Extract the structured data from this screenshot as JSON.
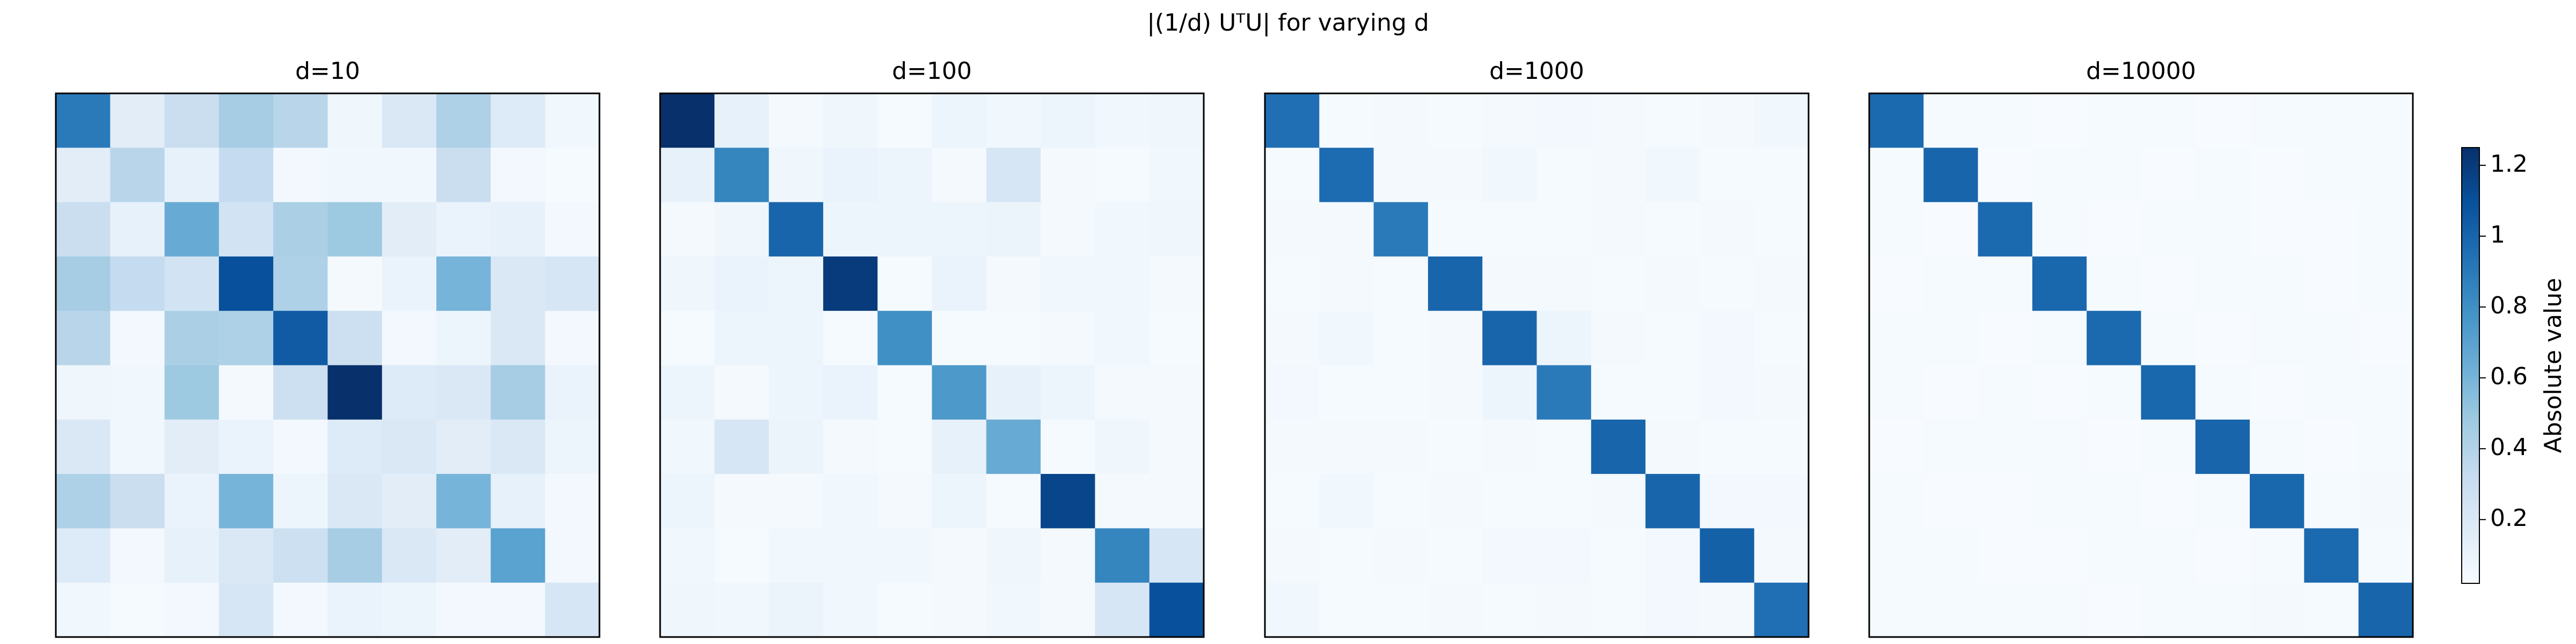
{
  "title": "|(1/d) UᵀU| for varying d",
  "colorbar": {
    "label": "Absolute value",
    "cmap": "Blues",
    "clim": [
      0.02,
      1.25
    ],
    "ticks": [
      0.2,
      0.4,
      0.6,
      0.8,
      1.0,
      1.2
    ]
  },
  "chart_data": [
    {
      "type": "heatmap",
      "title": "d=10",
      "values": [
        [
          0.9,
          0.15,
          0.3,
          0.45,
          0.38,
          0.07,
          0.2,
          0.42,
          0.18,
          0.06
        ],
        [
          0.15,
          0.38,
          0.12,
          0.33,
          0.05,
          0.06,
          0.06,
          0.3,
          0.05,
          0.03
        ],
        [
          0.3,
          0.12,
          0.65,
          0.25,
          0.43,
          0.48,
          0.15,
          0.1,
          0.12,
          0.05
        ],
        [
          0.45,
          0.33,
          0.25,
          1.1,
          0.42,
          0.04,
          0.1,
          0.6,
          0.2,
          0.22
        ],
        [
          0.38,
          0.05,
          0.43,
          0.42,
          1.05,
          0.28,
          0.05,
          0.08,
          0.2,
          0.05
        ],
        [
          0.07,
          0.06,
          0.48,
          0.04,
          0.28,
          1.25,
          0.18,
          0.2,
          0.45,
          0.1
        ],
        [
          0.2,
          0.06,
          0.15,
          0.1,
          0.05,
          0.18,
          0.2,
          0.15,
          0.2,
          0.08
        ],
        [
          0.42,
          0.3,
          0.1,
          0.6,
          0.08,
          0.2,
          0.15,
          0.6,
          0.12,
          0.05
        ],
        [
          0.18,
          0.05,
          0.12,
          0.2,
          0.28,
          0.45,
          0.2,
          0.15,
          0.7,
          0.05
        ],
        [
          0.06,
          0.03,
          0.05,
          0.22,
          0.05,
          0.1,
          0.08,
          0.05,
          0.05,
          0.22
        ]
      ]
    },
    {
      "type": "heatmap",
      "title": "d=100",
      "values": [
        [
          1.25,
          0.12,
          0.04,
          0.07,
          0.03,
          0.08,
          0.06,
          0.08,
          0.06,
          0.07
        ],
        [
          0.12,
          0.85,
          0.07,
          0.1,
          0.08,
          0.04,
          0.22,
          0.04,
          0.03,
          0.06
        ],
        [
          0.04,
          0.07,
          1.0,
          0.08,
          0.08,
          0.08,
          0.09,
          0.04,
          0.06,
          0.07
        ],
        [
          0.07,
          0.1,
          0.08,
          1.2,
          0.03,
          0.1,
          0.04,
          0.06,
          0.06,
          0.04
        ],
        [
          0.03,
          0.08,
          0.08,
          0.03,
          0.8,
          0.03,
          0.03,
          0.04,
          0.06,
          0.03
        ],
        [
          0.08,
          0.04,
          0.08,
          0.1,
          0.03,
          0.75,
          0.12,
          0.08,
          0.04,
          0.04
        ],
        [
          0.06,
          0.22,
          0.09,
          0.04,
          0.03,
          0.12,
          0.65,
          0.03,
          0.07,
          0.04
        ],
        [
          0.08,
          0.04,
          0.04,
          0.06,
          0.04,
          0.08,
          0.03,
          1.15,
          0.04,
          0.04
        ],
        [
          0.06,
          0.03,
          0.06,
          0.06,
          0.06,
          0.04,
          0.07,
          0.04,
          0.85,
          0.22
        ],
        [
          0.07,
          0.06,
          0.09,
          0.06,
          0.03,
          0.04,
          0.06,
          0.04,
          0.22,
          1.1
        ]
      ]
    },
    {
      "type": "heatmap",
      "title": "d=1000",
      "values": [
        [
          0.95,
          0.03,
          0.04,
          0.03,
          0.04,
          0.05,
          0.04,
          0.03,
          0.04,
          0.06
        ],
        [
          0.03,
          0.97,
          0.04,
          0.04,
          0.06,
          0.03,
          0.04,
          0.06,
          0.03,
          0.03
        ],
        [
          0.04,
          0.04,
          0.9,
          0.03,
          0.03,
          0.03,
          0.04,
          0.03,
          0.04,
          0.03
        ],
        [
          0.03,
          0.04,
          0.03,
          1.0,
          0.04,
          0.04,
          0.03,
          0.04,
          0.03,
          0.04
        ],
        [
          0.04,
          0.06,
          0.03,
          0.04,
          1.0,
          0.08,
          0.04,
          0.03,
          0.05,
          0.03
        ],
        [
          0.05,
          0.03,
          0.03,
          0.04,
          0.08,
          0.9,
          0.03,
          0.03,
          0.05,
          0.04
        ],
        [
          0.04,
          0.04,
          0.04,
          0.03,
          0.04,
          0.03,
          1.0,
          0.04,
          0.03,
          0.03
        ],
        [
          0.03,
          0.06,
          0.03,
          0.04,
          0.03,
          0.03,
          0.04,
          1.0,
          0.05,
          0.05
        ],
        [
          0.04,
          0.03,
          0.04,
          0.03,
          0.05,
          0.05,
          0.03,
          0.05,
          1.02,
          0.04
        ],
        [
          0.06,
          0.03,
          0.03,
          0.04,
          0.03,
          0.04,
          0.03,
          0.05,
          0.04,
          0.95
        ]
      ]
    },
    {
      "type": "heatmap",
      "title": "d=10000",
      "values": [
        [
          0.98,
          0.03,
          0.03,
          0.02,
          0.03,
          0.03,
          0.02,
          0.03,
          0.03,
          0.03
        ],
        [
          0.03,
          1.0,
          0.02,
          0.03,
          0.03,
          0.02,
          0.03,
          0.02,
          0.03,
          0.03
        ],
        [
          0.03,
          0.02,
          0.98,
          0.03,
          0.02,
          0.03,
          0.03,
          0.02,
          0.02,
          0.03
        ],
        [
          0.02,
          0.03,
          0.03,
          0.99,
          0.03,
          0.02,
          0.03,
          0.03,
          0.02,
          0.03
        ],
        [
          0.03,
          0.03,
          0.02,
          0.03,
          0.98,
          0.03,
          0.02,
          0.03,
          0.03,
          0.02
        ],
        [
          0.03,
          0.02,
          0.03,
          0.02,
          0.03,
          0.99,
          0.03,
          0.02,
          0.03,
          0.03
        ],
        [
          0.02,
          0.03,
          0.03,
          0.03,
          0.02,
          0.03,
          1.0,
          0.03,
          0.02,
          0.03
        ],
        [
          0.03,
          0.02,
          0.02,
          0.03,
          0.03,
          0.02,
          0.03,
          0.99,
          0.03,
          0.04
        ],
        [
          0.03,
          0.03,
          0.02,
          0.02,
          0.03,
          0.03,
          0.02,
          0.03,
          0.98,
          0.03
        ],
        [
          0.03,
          0.03,
          0.03,
          0.03,
          0.02,
          0.03,
          0.03,
          0.04,
          0.03,
          1.0
        ]
      ]
    }
  ]
}
